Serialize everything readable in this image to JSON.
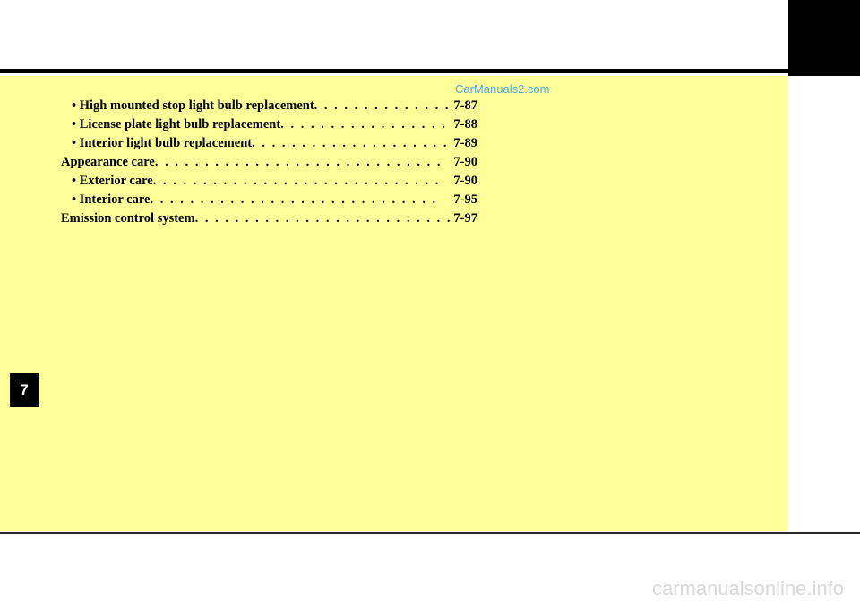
{
  "watermarks": {
    "top": "CarManuals2.com",
    "bottom": "carmanualsonline.info"
  },
  "chapter": {
    "number": "7"
  },
  "toc": {
    "entries": [
      {
        "level": "sub",
        "label": "• High mounted stop light bulb replacement",
        "page": "7-87"
      },
      {
        "level": "sub",
        "label": "• License plate light bulb replacement",
        "page": "7-88"
      },
      {
        "level": "sub",
        "label": "• Interior light bulb replacement",
        "page": "7-89"
      },
      {
        "level": "main",
        "label": "Appearance care",
        "page": "7-90"
      },
      {
        "level": "sub",
        "label": "• Exterior care",
        "page": "7-90"
      },
      {
        "level": "sub",
        "label": "• Interior care",
        "page": "7-95"
      },
      {
        "level": "main",
        "label": "Emission control system",
        "page": "7-97"
      }
    ]
  },
  "colors": {
    "page_bg": "#ffff99",
    "watermark_top": "#50aae6",
    "watermark_bottom": "#d8d8d8",
    "text": "#000000"
  }
}
